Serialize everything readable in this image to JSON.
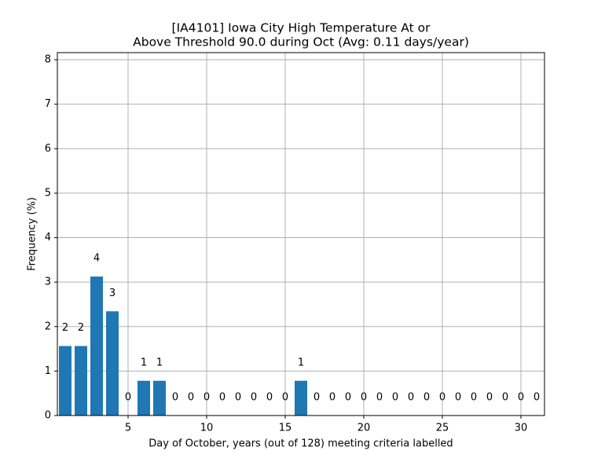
{
  "chart_data": {
    "type": "bar",
    "title": [
      "[IA4101] Iowa City High Temperature At or",
      "Above Threshold 90.0 during Oct (Avg: 0.11 days/year)"
    ],
    "x_label": "Day of October, years (out of 128) meeting criteria labelled",
    "y_label": "Frequency (%)",
    "x": [
      1,
      2,
      3,
      4,
      5,
      6,
      7,
      8,
      9,
      10,
      11,
      12,
      13,
      14,
      15,
      16,
      17,
      18,
      19,
      20,
      21,
      22,
      23,
      24,
      25,
      26,
      27,
      28,
      29,
      30,
      31
    ],
    "values": [
      1.5625,
      1.5625,
      3.125,
      2.34375,
      0,
      0.78125,
      0.78125,
      0,
      0,
      0,
      0,
      0,
      0,
      0,
      0,
      0.78125,
      0,
      0,
      0,
      0,
      0,
      0,
      0,
      0,
      0,
      0,
      0,
      0,
      0,
      0,
      0
    ],
    "counts": [
      2,
      2,
      4,
      3,
      0,
      1,
      1,
      0,
      0,
      0,
      0,
      0,
      0,
      0,
      0,
      1,
      0,
      0,
      0,
      0,
      0,
      0,
      0,
      0,
      0,
      0,
      0,
      0,
      0,
      0,
      0
    ],
    "color": "#1f77b4",
    "xlim": [
      0.5,
      31.5
    ],
    "xticks": [
      5,
      10,
      15,
      20,
      25,
      30
    ],
    "ylim": [
      0,
      8.16
    ],
    "yticks": [
      0,
      1,
      2,
      3,
      4,
      5,
      6,
      7,
      8
    ],
    "grid": true
  }
}
